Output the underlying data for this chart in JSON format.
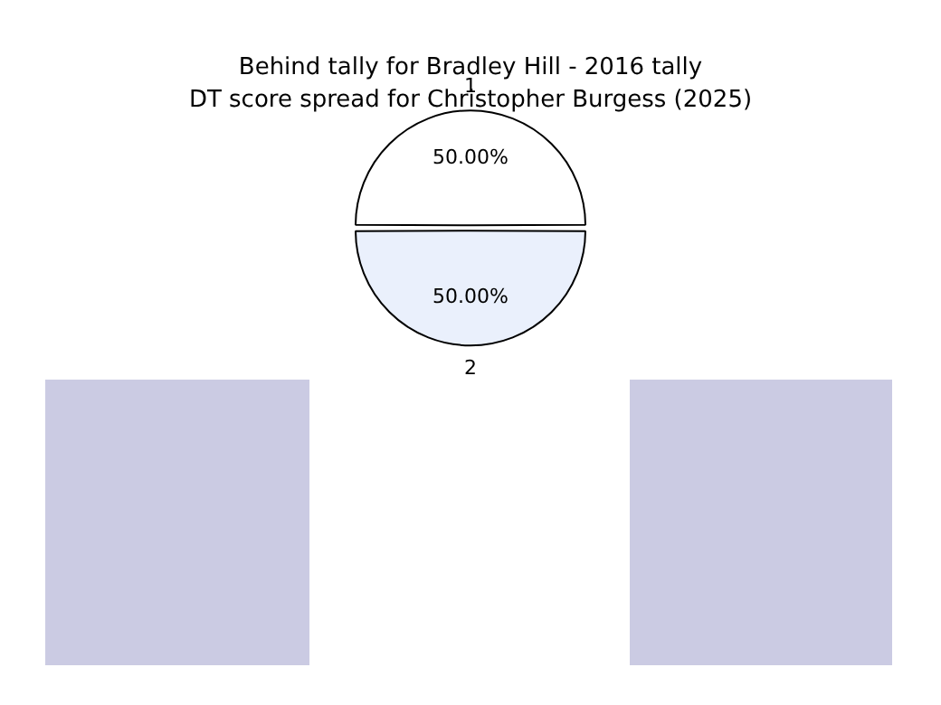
{
  "chart_data": {
    "type": "pie",
    "title": "Behind tally for Bradley Hill - 2016 tally",
    "subtitle": "DT score spread for Christopher Burgess (2025)",
    "categories": [
      "1",
      "2"
    ],
    "values": [
      50,
      50
    ],
    "colors": [
      "#ffffff",
      "#eaf0fc"
    ],
    "value_labels": [
      "50.00%",
      "50.00%"
    ],
    "legend": false
  }
}
